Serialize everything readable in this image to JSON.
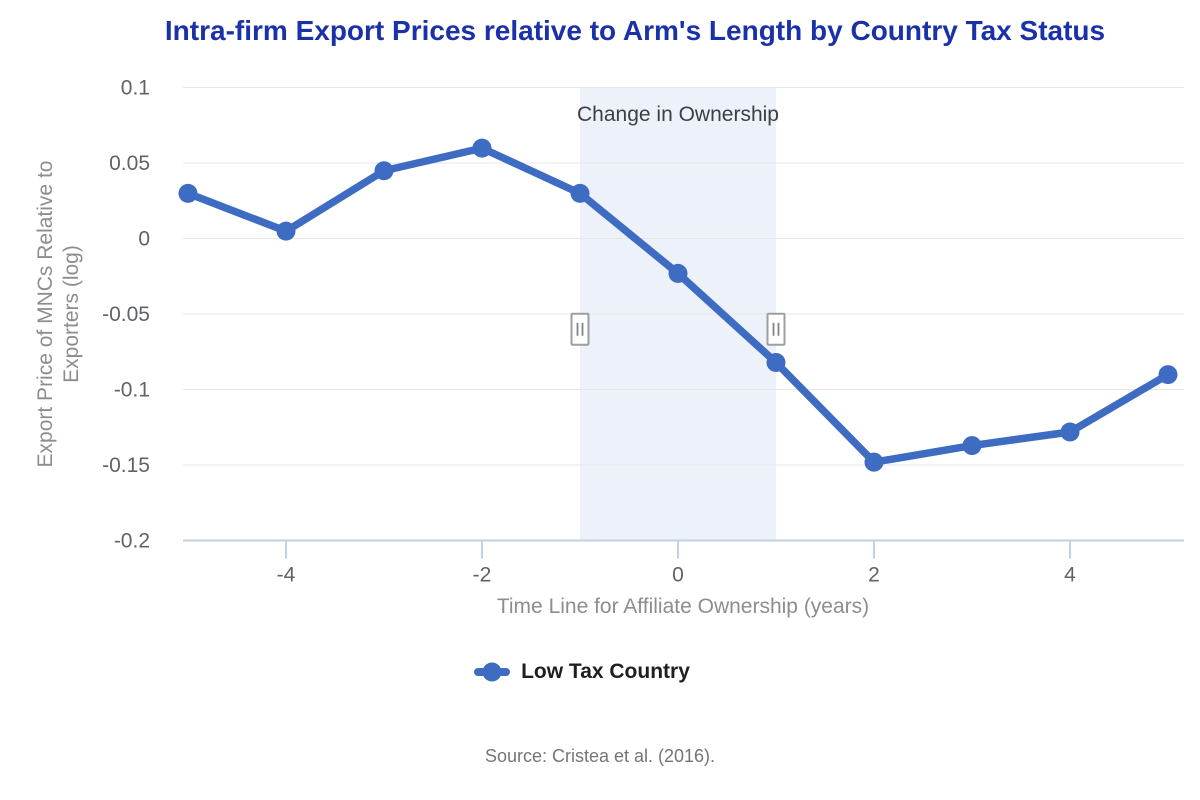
{
  "chart_data": {
    "type": "line",
    "title": "Intra-firm Export Prices relative to Arm's Length by Country Tax Status",
    "xlabel": "Time Line for Affiliate Ownership (years)",
    "ylabel": "Export Price of MNCs Relative to Exporters (log)",
    "ylabel_lines": [
      "Export Price of MNCs Relative to",
      "Exporters (log)"
    ],
    "x": [
      -5,
      -4,
      -3,
      -2,
      -1,
      0,
      1,
      2,
      3,
      4,
      5
    ],
    "series": [
      {
        "name": "Low Tax Country",
        "color": "#3d6cc2",
        "values": [
          0.03,
          0.005,
          0.045,
          0.06,
          0.03,
          -0.023,
          -0.082,
          -0.148,
          -0.137,
          -0.128,
          -0.09
        ]
      }
    ],
    "xlim": [
      -5,
      5
    ],
    "ylim": [
      -0.2,
      0.1
    ],
    "x_ticks": [
      -4,
      -2,
      0,
      2,
      4
    ],
    "y_ticks": [
      0.1,
      0.05,
      0,
      -0.05,
      -0.1,
      -0.15,
      -0.2
    ],
    "grid": true,
    "legend_position": "bottom",
    "annotation_band": {
      "from": -1,
      "to": 1,
      "label": "Change in Ownership",
      "fill": "#edf1f9",
      "handle_y": -0.06
    },
    "source": "Source: Cristea et al. (2016).",
    "colors": {
      "title": "#1b31a8",
      "axis_tick_text": "#5f6368",
      "axis_title_text": "#8d8d8d",
      "gridline": "#e6e6e6",
      "axis_line": "#c3cfe2",
      "annotation_text": "#3c4043",
      "legend_text": "#1f1f1f",
      "source_text": "#757575",
      "handle_border": "#9e9e9e",
      "handle_lines": "#80868b",
      "handle_fill": "#ffffff"
    }
  }
}
